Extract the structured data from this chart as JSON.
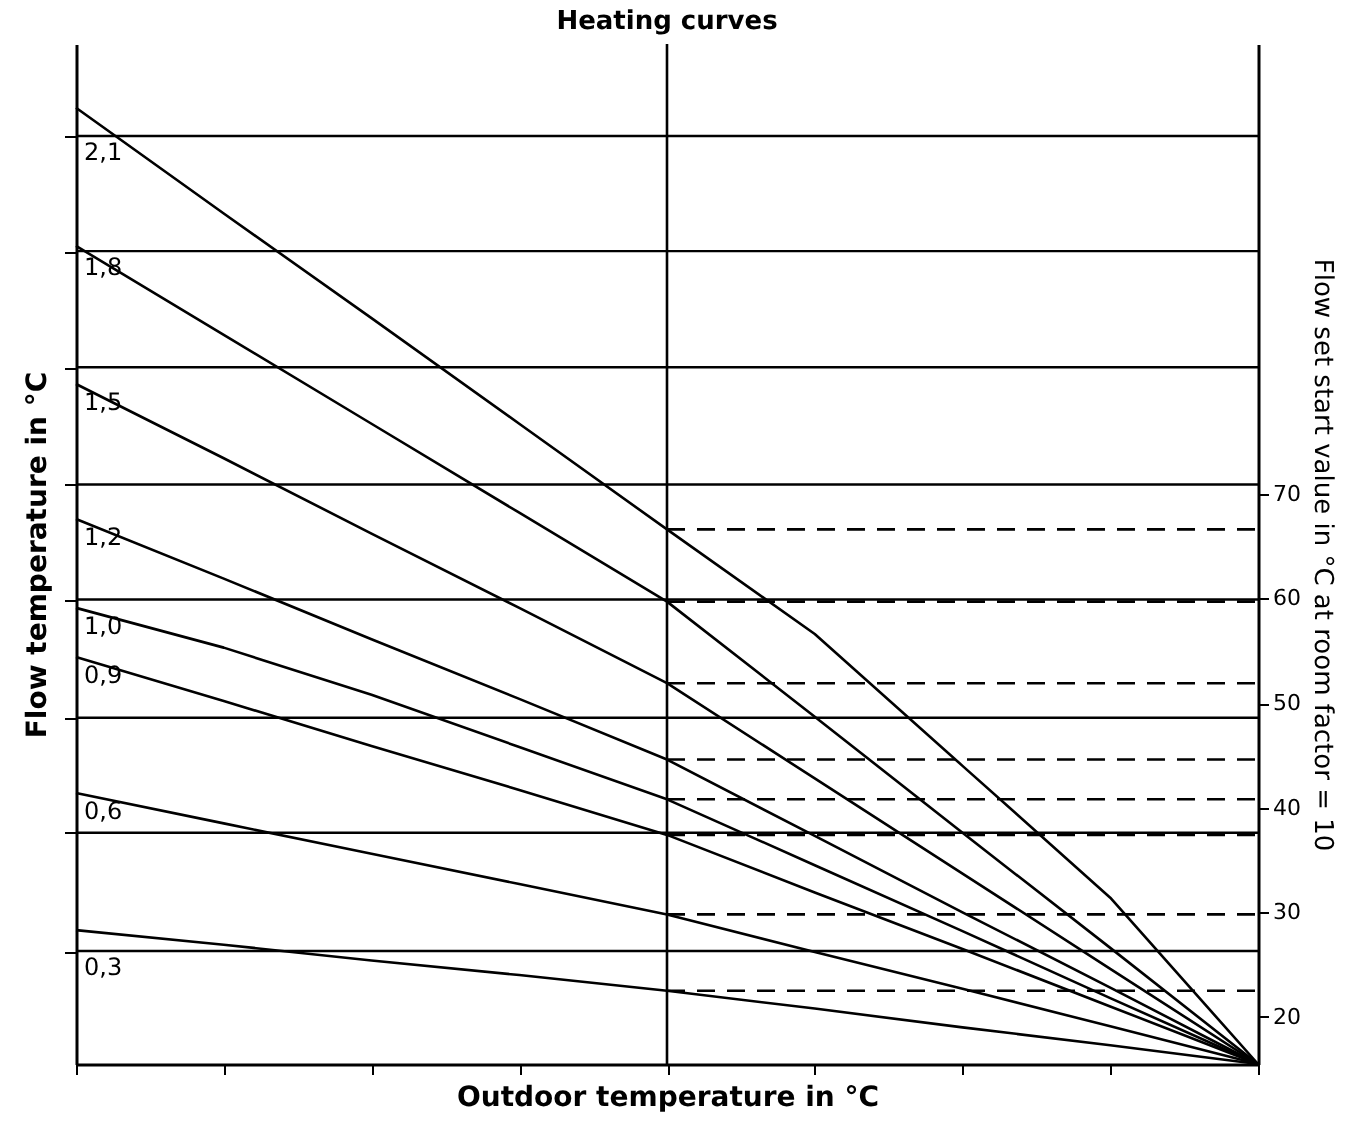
{
  "chart_data": {
    "type": "line",
    "title": "Heating curves",
    "xlabel": "Outdoor temperature in °C",
    "ylabel": "Flow temperature in °C",
    "y2label": "Flow set start value in °C at room factor = 10",
    "categories": [
      null,
      null,
      null,
      null,
      null,
      null,
      null,
      null,
      null
    ],
    "ylim": [
      15.5,
      113
    ],
    "yticks": [
      20,
      30,
      40,
      50,
      60,
      70
    ],
    "line_style": "solid",
    "legend": "left",
    "ref_lines": [
      {
        "axis": "y",
        "value": 26.3,
        "color": "#000000"
      },
      {
        "axis": "y",
        "value": 37.6,
        "color": "#000000"
      },
      {
        "axis": "y",
        "value": 48.6,
        "color": "#000000"
      },
      {
        "axis": "y",
        "value": 59.9,
        "color": "#000000"
      },
      {
        "axis": "y",
        "value": 70.9,
        "color": "#000000"
      },
      {
        "axis": "y",
        "value": 82.1,
        "color": "#000000"
      },
      {
        "axis": "y",
        "value": 93.2,
        "color": "#000000"
      },
      {
        "axis": "y",
        "value": 104.2,
        "color": "#000000"
      }
    ],
    "series": [
      {
        "name": "2,1",
        "color": "#000000",
        "values": [
          106.9,
          96.8,
          86.8,
          76.7,
          66.6,
          56.6,
          44.0,
          31.4,
          15.5
        ]
      },
      {
        "name": "1,8",
        "color": "#000000",
        "values": [
          93.7,
          85.2,
          76.7,
          68.2,
          59.7,
          48.7,
          37.6,
          26.6,
          15.5
        ]
      },
      {
        "name": "1,5",
        "color": "#000000",
        "values": [
          80.5,
          73.4,
          66.2,
          59.1,
          51.9,
          42.8,
          33.7,
          24.6,
          15.5
        ]
      },
      {
        "name": "1,2",
        "color": "#000000",
        "values": [
          67.6,
          61.9,
          56.1,
          50.4,
          44.6,
          37.3,
          30.0,
          22.8,
          15.5
        ]
      },
      {
        "name": "1,0",
        "color": "#000000",
        "values": [
          59.1,
          55.3,
          50.8,
          45.8,
          40.8,
          34.5,
          28.2,
          21.8,
          15.5
        ]
      },
      {
        "name": "0,9",
        "color": "#000000",
        "values": [
          54.4,
          50.2,
          45.9,
          41.7,
          37.4,
          31.9,
          26.5,
          21.0,
          15.5
        ]
      },
      {
        "name": "0,6",
        "color": "#000000",
        "values": [
          41.4,
          38.5,
          35.6,
          32.7,
          29.8,
          26.2,
          22.7,
          19.1,
          15.5
        ]
      },
      {
        "name": "0,3",
        "color": "#000000",
        "values": [
          28.3,
          26.9,
          25.4,
          24.0,
          22.5,
          20.8,
          19.0,
          17.3,
          15.5
        ]
      },
      {
        "color": "#000000",
        "line_style": "dashed",
        "values": [
          null,
          null,
          null,
          null,
          66.6,
          66.6,
          66.6,
          66.6,
          66.6
        ]
      },
      {
        "color": "#000000",
        "line_style": "dashed",
        "values": [
          null,
          null,
          null,
          null,
          59.7,
          59.7,
          59.7,
          59.7,
          59.7
        ]
      },
      {
        "color": "#000000",
        "line_style": "dashed",
        "values": [
          null,
          null,
          null,
          null,
          51.9,
          51.9,
          51.9,
          51.9,
          51.9
        ]
      },
      {
        "color": "#000000",
        "line_style": "dashed",
        "values": [
          null,
          null,
          null,
          null,
          44.6,
          44.6,
          44.6,
          44.6,
          44.6
        ]
      },
      {
        "color": "#000000",
        "line_style": "dashed",
        "values": [
          null,
          null,
          null,
          null,
          40.8,
          40.8,
          40.8,
          40.8,
          40.8
        ]
      },
      {
        "color": "#000000",
        "line_style": "dashed",
        "values": [
          null,
          null,
          null,
          null,
          37.4,
          37.4,
          37.4,
          37.4,
          37.4
        ]
      },
      {
        "color": "#000000",
        "line_style": "dashed",
        "values": [
          null,
          null,
          null,
          null,
          29.8,
          29.8,
          29.8,
          29.8,
          29.8
        ]
      },
      {
        "color": "#000000",
        "line_style": "dashed",
        "values": [
          null,
          null,
          null,
          null,
          22.5,
          22.5,
          22.5,
          22.5,
          22.5
        ]
      }
    ]
  }
}
